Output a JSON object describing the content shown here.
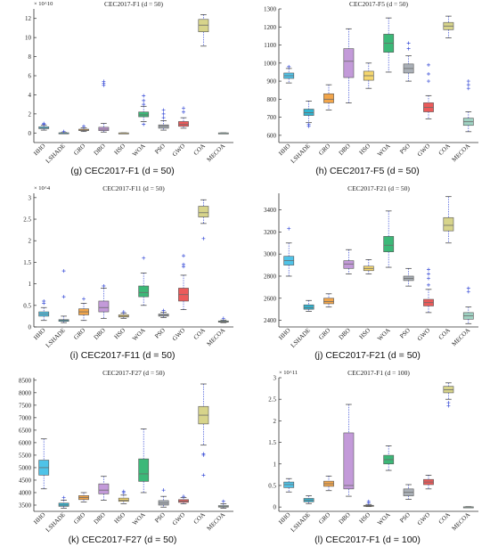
{
  "colors": {
    "categories": [
      "#4fc3e8",
      "#32b4d0",
      "#f2a54a",
      "#c39ad9",
      "#f5d76e",
      "#3cb878",
      "#aab0b7",
      "#ec5a5a",
      "#d7d48b",
      "#9fd2c2"
    ],
    "outlier": "#3b4fd8",
    "whisker": "#3b4fd8",
    "median": "#6a6a6a",
    "axis": "#333333"
  },
  "chart_data": [
    {
      "type": "box",
      "title": "CEC2017-F1 (d = 50)",
      "caption": "(g) CEC2017-F1 (d = 50)",
      "exponent": "× 10^10",
      "categories": [
        "HHO",
        "LSHADE",
        "GRO",
        "DBO",
        "HSO",
        "WOA",
        "PSO",
        "GWO",
        "COA",
        "MECOA"
      ],
      "ylim": [
        -1,
        13
      ],
      "yticks": [
        0,
        2,
        4,
        6,
        8,
        10,
        12
      ],
      "ytick_labels": [
        "0",
        "2",
        "4",
        "6",
        "8",
        "10",
        "12"
      ],
      "boxes": [
        {
          "whisker_low": 0.3,
          "q1": 0.45,
          "median": 0.5,
          "q3": 0.65,
          "whisker_high": 0.8,
          "outliers": [
            0.9,
            1.0
          ]
        },
        {
          "whisker_low": -0.05,
          "q1": -0.02,
          "median": 0.0,
          "q3": 0.02,
          "whisker_high": 0.05,
          "outliers": [
            0.15
          ]
        },
        {
          "whisker_low": 0.15,
          "q1": 0.25,
          "median": 0.3,
          "q3": 0.4,
          "whisker_high": 0.55,
          "outliers": [
            0.7
          ]
        },
        {
          "whisker_low": 0.1,
          "q1": 0.25,
          "median": 0.4,
          "q3": 0.6,
          "whisker_high": 1.0,
          "outliers": [
            5.0,
            5.2,
            5.4
          ]
        },
        {
          "whisker_low": -0.02,
          "q1": -0.01,
          "median": 0.0,
          "q3": 0.01,
          "whisker_high": 0.02,
          "outliers": []
        },
        {
          "whisker_low": 1.2,
          "q1": 1.7,
          "median": 1.9,
          "q3": 2.2,
          "whisker_high": 2.8,
          "outliers": [
            0.9,
            3.0,
            3.4,
            3.9
          ]
        },
        {
          "whisker_low": 0.3,
          "q1": 0.5,
          "median": 0.7,
          "q3": 0.85,
          "whisker_high": 1.3,
          "outliers": [
            1.6,
            2.0,
            2.4
          ]
        },
        {
          "whisker_low": 0.5,
          "q1": 0.7,
          "median": 0.9,
          "q3": 1.2,
          "whisker_high": 1.6,
          "outliers": [
            2.2,
            2.6
          ]
        },
        {
          "whisker_low": 9.1,
          "q1": 10.6,
          "median": 11.3,
          "q3": 11.9,
          "whisker_high": 12.4,
          "outliers": []
        },
        {
          "whisker_low": -0.02,
          "q1": -0.01,
          "median": 0.0,
          "q3": 0.01,
          "whisker_high": 0.02,
          "outliers": []
        }
      ]
    },
    {
      "type": "box",
      "title": "CEC2017-F5 (d = 50)",
      "caption": "(h) CEC2017-F5 (d = 50)",
      "exponent": "",
      "categories": [
        "HHO",
        "LSHADE",
        "GRO",
        "DBO",
        "HSO",
        "WOA",
        "PSO",
        "GWO",
        "COA",
        "MECOA"
      ],
      "ylim": [
        560,
        1300
      ],
      "yticks": [
        600,
        700,
        800,
        900,
        1000,
        1100,
        1200,
        1300
      ],
      "ytick_labels": [
        "600",
        "700",
        "800",
        "900",
        "1000",
        "1100",
        "1200",
        "1300"
      ],
      "boxes": [
        {
          "whisker_low": 890,
          "q1": 915,
          "median": 930,
          "q3": 945,
          "whisker_high": 970,
          "outliers": [
            980
          ]
        },
        {
          "whisker_low": 670,
          "q1": 710,
          "median": 725,
          "q3": 745,
          "whisker_high": 790,
          "outliers": [
            660,
            650
          ]
        },
        {
          "whisker_low": 740,
          "q1": 780,
          "median": 800,
          "q3": 830,
          "whisker_high": 880,
          "outliers": []
        },
        {
          "whisker_low": 780,
          "q1": 920,
          "median": 1010,
          "q3": 1080,
          "whisker_high": 1190,
          "outliers": []
        },
        {
          "whisker_low": 860,
          "q1": 905,
          "median": 930,
          "q3": 955,
          "whisker_high": 1000,
          "outliers": []
        },
        {
          "whisker_low": 950,
          "q1": 1060,
          "median": 1110,
          "q3": 1160,
          "whisker_high": 1250,
          "outliers": []
        },
        {
          "whisker_low": 900,
          "q1": 945,
          "median": 970,
          "q3": 995,
          "whisker_high": 1040,
          "outliers": [
            1080,
            1110
          ]
        },
        {
          "whisker_low": 690,
          "q1": 730,
          "median": 755,
          "q3": 780,
          "whisker_high": 820,
          "outliers": [
            900,
            940,
            990
          ]
        },
        {
          "whisker_low": 1140,
          "q1": 1185,
          "median": 1205,
          "q3": 1225,
          "whisker_high": 1260,
          "outliers": []
        },
        {
          "whisker_low": 620,
          "q1": 655,
          "median": 675,
          "q3": 695,
          "whisker_high": 730,
          "outliers": [
            860,
            880,
            900
          ]
        }
      ]
    },
    {
      "type": "box",
      "title": "CEC2017-F11 (d = 50)",
      "caption": "(i) CEC2017-F11 (d = 50)",
      "exponent": "× 10^4",
      "categories": [
        "HHO",
        "LSHADE",
        "GRO",
        "DBO",
        "HSO",
        "WOA",
        "PSO",
        "GWO",
        "COA",
        "MECOA"
      ],
      "ylim": [
        0,
        3.1
      ],
      "yticks": [
        0,
        0.5,
        1,
        1.5,
        2,
        2.5,
        3
      ],
      "ytick_labels": [
        "0",
        "0.5",
        "1",
        "1.5",
        "2",
        "2.5",
        "3"
      ],
      "boxes": [
        {
          "whisker_low": 0.15,
          "q1": 0.25,
          "median": 0.3,
          "q3": 0.35,
          "whisker_high": 0.45,
          "outliers": [
            0.55,
            0.6
          ]
        },
        {
          "whisker_low": 0.1,
          "q1": 0.13,
          "median": 0.15,
          "q3": 0.17,
          "whisker_high": 0.25,
          "outliers": [
            0.7,
            1.3
          ]
        },
        {
          "whisker_low": 0.15,
          "q1": 0.28,
          "median": 0.35,
          "q3": 0.42,
          "whisker_high": 0.55,
          "outliers": [
            0.65
          ]
        },
        {
          "whisker_low": 0.2,
          "q1": 0.35,
          "median": 0.45,
          "q3": 0.6,
          "whisker_high": 0.9,
          "outliers": [
            0.95
          ]
        },
        {
          "whisker_low": 0.2,
          "q1": 0.23,
          "median": 0.25,
          "q3": 0.28,
          "whisker_high": 0.32,
          "outliers": [
            0.35
          ]
        },
        {
          "whisker_low": 0.5,
          "q1": 0.7,
          "median": 0.8,
          "q3": 0.95,
          "whisker_high": 1.25,
          "outliers": [
            1.6
          ]
        },
        {
          "whisker_low": 0.22,
          "q1": 0.25,
          "median": 0.27,
          "q3": 0.3,
          "whisker_high": 0.34,
          "outliers": [
            0.38
          ]
        },
        {
          "whisker_low": 0.4,
          "q1": 0.6,
          "median": 0.75,
          "q3": 0.9,
          "whisker_high": 1.2,
          "outliers": [
            1.4,
            1.45,
            1.65
          ]
        },
        {
          "whisker_low": 2.4,
          "q1": 2.55,
          "median": 2.65,
          "q3": 2.8,
          "whisker_high": 2.95,
          "outliers": [
            2.05
          ]
        },
        {
          "whisker_low": 0.1,
          "q1": 0.11,
          "median": 0.12,
          "q3": 0.14,
          "whisker_high": 0.16,
          "outliers": [
            0.2
          ]
        }
      ]
    },
    {
      "type": "box",
      "title": "CEC2017-F21 (d = 50)",
      "caption": "(j) CEC2017-F21 (d = 50)",
      "exponent": "",
      "categories": [
        "HHO",
        "LSHADE",
        "GRO",
        "DBO",
        "HSO",
        "WOA",
        "PSO",
        "GWO",
        "COA",
        "MECOA"
      ],
      "ylim": [
        2340,
        3550
      ],
      "yticks": [
        2400,
        2600,
        2800,
        3000,
        3200,
        3400
      ],
      "ytick_labels": [
        "2400",
        "2600",
        "2800",
        "3000",
        "3200",
        "3400"
      ],
      "boxes": [
        {
          "whisker_low": 2800,
          "q1": 2900,
          "median": 2940,
          "q3": 2980,
          "whisker_high": 3100,
          "outliers": [
            3230
          ]
        },
        {
          "whisker_low": 2480,
          "q1": 2500,
          "median": 2515,
          "q3": 2540,
          "whisker_high": 2580,
          "outliers": []
        },
        {
          "whisker_low": 2520,
          "q1": 2550,
          "median": 2570,
          "q3": 2600,
          "whisker_high": 2640,
          "outliers": []
        },
        {
          "whisker_low": 2820,
          "q1": 2870,
          "median": 2910,
          "q3": 2940,
          "whisker_high": 3040,
          "outliers": []
        },
        {
          "whisker_low": 2820,
          "q1": 2850,
          "median": 2870,
          "q3": 2890,
          "whisker_high": 2950,
          "outliers": []
        },
        {
          "whisker_low": 2880,
          "q1": 3020,
          "median": 3080,
          "q3": 3160,
          "whisker_high": 3390,
          "outliers": []
        },
        {
          "whisker_low": 2710,
          "q1": 2760,
          "median": 2780,
          "q3": 2800,
          "whisker_high": 2870,
          "outliers": []
        },
        {
          "whisker_low": 2470,
          "q1": 2530,
          "median": 2560,
          "q3": 2590,
          "whisker_high": 2680,
          "outliers": [
            2720,
            2780,
            2820,
            2860
          ]
        },
        {
          "whisker_low": 3100,
          "q1": 3210,
          "median": 3260,
          "q3": 3330,
          "whisker_high": 3520,
          "outliers": []
        },
        {
          "whisker_low": 2370,
          "q1": 2410,
          "median": 2440,
          "q3": 2470,
          "whisker_high": 2520,
          "outliers": [
            2660,
            2690
          ]
        }
      ]
    },
    {
      "type": "box",
      "title": "CEC2017-F27 (d = 50)",
      "caption": "(k) CEC2017-F27 (d = 50)",
      "exponent": "",
      "categories": [
        "HHO",
        "LSHADE",
        "GRO",
        "DBO",
        "HSO",
        "WOA",
        "PSO",
        "GWO",
        "COA",
        "MECOA"
      ],
      "ylim": [
        3250,
        8600
      ],
      "yticks": [
        3500,
        4000,
        4500,
        5000,
        5500,
        6000,
        6500,
        7000,
        7500,
        8000,
        8500
      ],
      "ytick_labels": [
        "3500",
        "4000",
        "4500",
        "5000",
        "5500",
        "6000",
        "6500",
        "7000",
        "7500",
        "8000",
        "8500"
      ],
      "boxes": [
        {
          "whisker_low": 4150,
          "q1": 4700,
          "median": 5000,
          "q3": 5300,
          "whisker_high": 6150,
          "outliers": []
        },
        {
          "whisker_low": 3380,
          "q1": 3450,
          "median": 3500,
          "q3": 3580,
          "whisker_high": 3700,
          "outliers": [
            3800
          ]
        },
        {
          "whisker_low": 3620,
          "q1": 3720,
          "median": 3800,
          "q3": 3880,
          "whisker_high": 4000,
          "outliers": []
        },
        {
          "whisker_low": 3700,
          "q1": 3950,
          "median": 4100,
          "q3": 4350,
          "whisker_high": 4650,
          "outliers": []
        },
        {
          "whisker_low": 3550,
          "q1": 3650,
          "median": 3700,
          "q3": 3780,
          "whisker_high": 3900,
          "outliers": [
            4000,
            4050
          ]
        },
        {
          "whisker_low": 4000,
          "q1": 4450,
          "median": 4750,
          "q3": 5350,
          "whisker_high": 6550,
          "outliers": []
        },
        {
          "whisker_low": 3420,
          "q1": 3500,
          "median": 3580,
          "q3": 3680,
          "whisker_high": 3850,
          "outliers": [
            4100
          ]
        },
        {
          "whisker_low": 3550,
          "q1": 3610,
          "median": 3660,
          "q3": 3720,
          "whisker_high": 3800,
          "outliers": [
            3850
          ]
        },
        {
          "whisker_low": 5900,
          "q1": 6750,
          "median": 7100,
          "q3": 7450,
          "whisker_high": 8350,
          "outliers": [
            5500,
            5550,
            4700
          ]
        },
        {
          "whisker_low": 3380,
          "q1": 3420,
          "median": 3450,
          "q3": 3480,
          "whisker_high": 3550,
          "outliers": [
            3650
          ]
        }
      ]
    },
    {
      "type": "box",
      "title": "CEC2017-F1 (d = 100)",
      "caption": "(l) CEC2017-F1 (d = 100)",
      "exponent": "× 10^11",
      "categories": [
        "HHO",
        "LSHADE",
        "GRO",
        "DBO",
        "HSO",
        "WOA",
        "PSO",
        "GWO",
        "COA",
        "MECOA"
      ],
      "ylim": [
        -0.1,
        3
      ],
      "yticks": [
        0,
        0.5,
        1,
        1.5,
        2,
        2.5,
        3
      ],
      "ytick_labels": [
        "0",
        "0.5",
        "1",
        "1.5",
        "2",
        "2.5",
        "3"
      ],
      "boxes": [
        {
          "whisker_low": 0.35,
          "q1": 0.45,
          "median": 0.52,
          "q3": 0.58,
          "whisker_high": 0.66,
          "outliers": []
        },
        {
          "whisker_low": 0.08,
          "q1": 0.12,
          "median": 0.16,
          "q3": 0.2,
          "whisker_high": 0.26,
          "outliers": []
        },
        {
          "whisker_low": 0.38,
          "q1": 0.48,
          "median": 0.54,
          "q3": 0.6,
          "whisker_high": 0.72,
          "outliers": []
        },
        {
          "whisker_low": 0.25,
          "q1": 0.42,
          "median": 0.5,
          "q3": 1.72,
          "whisker_high": 2.38,
          "outliers": []
        },
        {
          "whisker_low": 0.01,
          "q1": 0.02,
          "median": 0.03,
          "q3": 0.04,
          "whisker_high": 0.06,
          "outliers": [
            0.1,
            0.13
          ]
        },
        {
          "whisker_low": 0.85,
          "q1": 1.0,
          "median": 1.1,
          "q3": 1.2,
          "whisker_high": 1.42,
          "outliers": []
        },
        {
          "whisker_low": 0.18,
          "q1": 0.26,
          "median": 0.34,
          "q3": 0.42,
          "whisker_high": 0.52,
          "outliers": []
        },
        {
          "whisker_low": 0.42,
          "q1": 0.52,
          "median": 0.58,
          "q3": 0.64,
          "whisker_high": 0.74,
          "outliers": []
        },
        {
          "whisker_low": 2.5,
          "q1": 2.65,
          "median": 2.72,
          "q3": 2.8,
          "whisker_high": 2.88,
          "outliers": [
            2.35,
            2.42
          ]
        },
        {
          "whisker_low": -0.01,
          "q1": 0.0,
          "median": 0.0,
          "q3": 0.005,
          "whisker_high": 0.01,
          "outliers": []
        }
      ]
    }
  ]
}
